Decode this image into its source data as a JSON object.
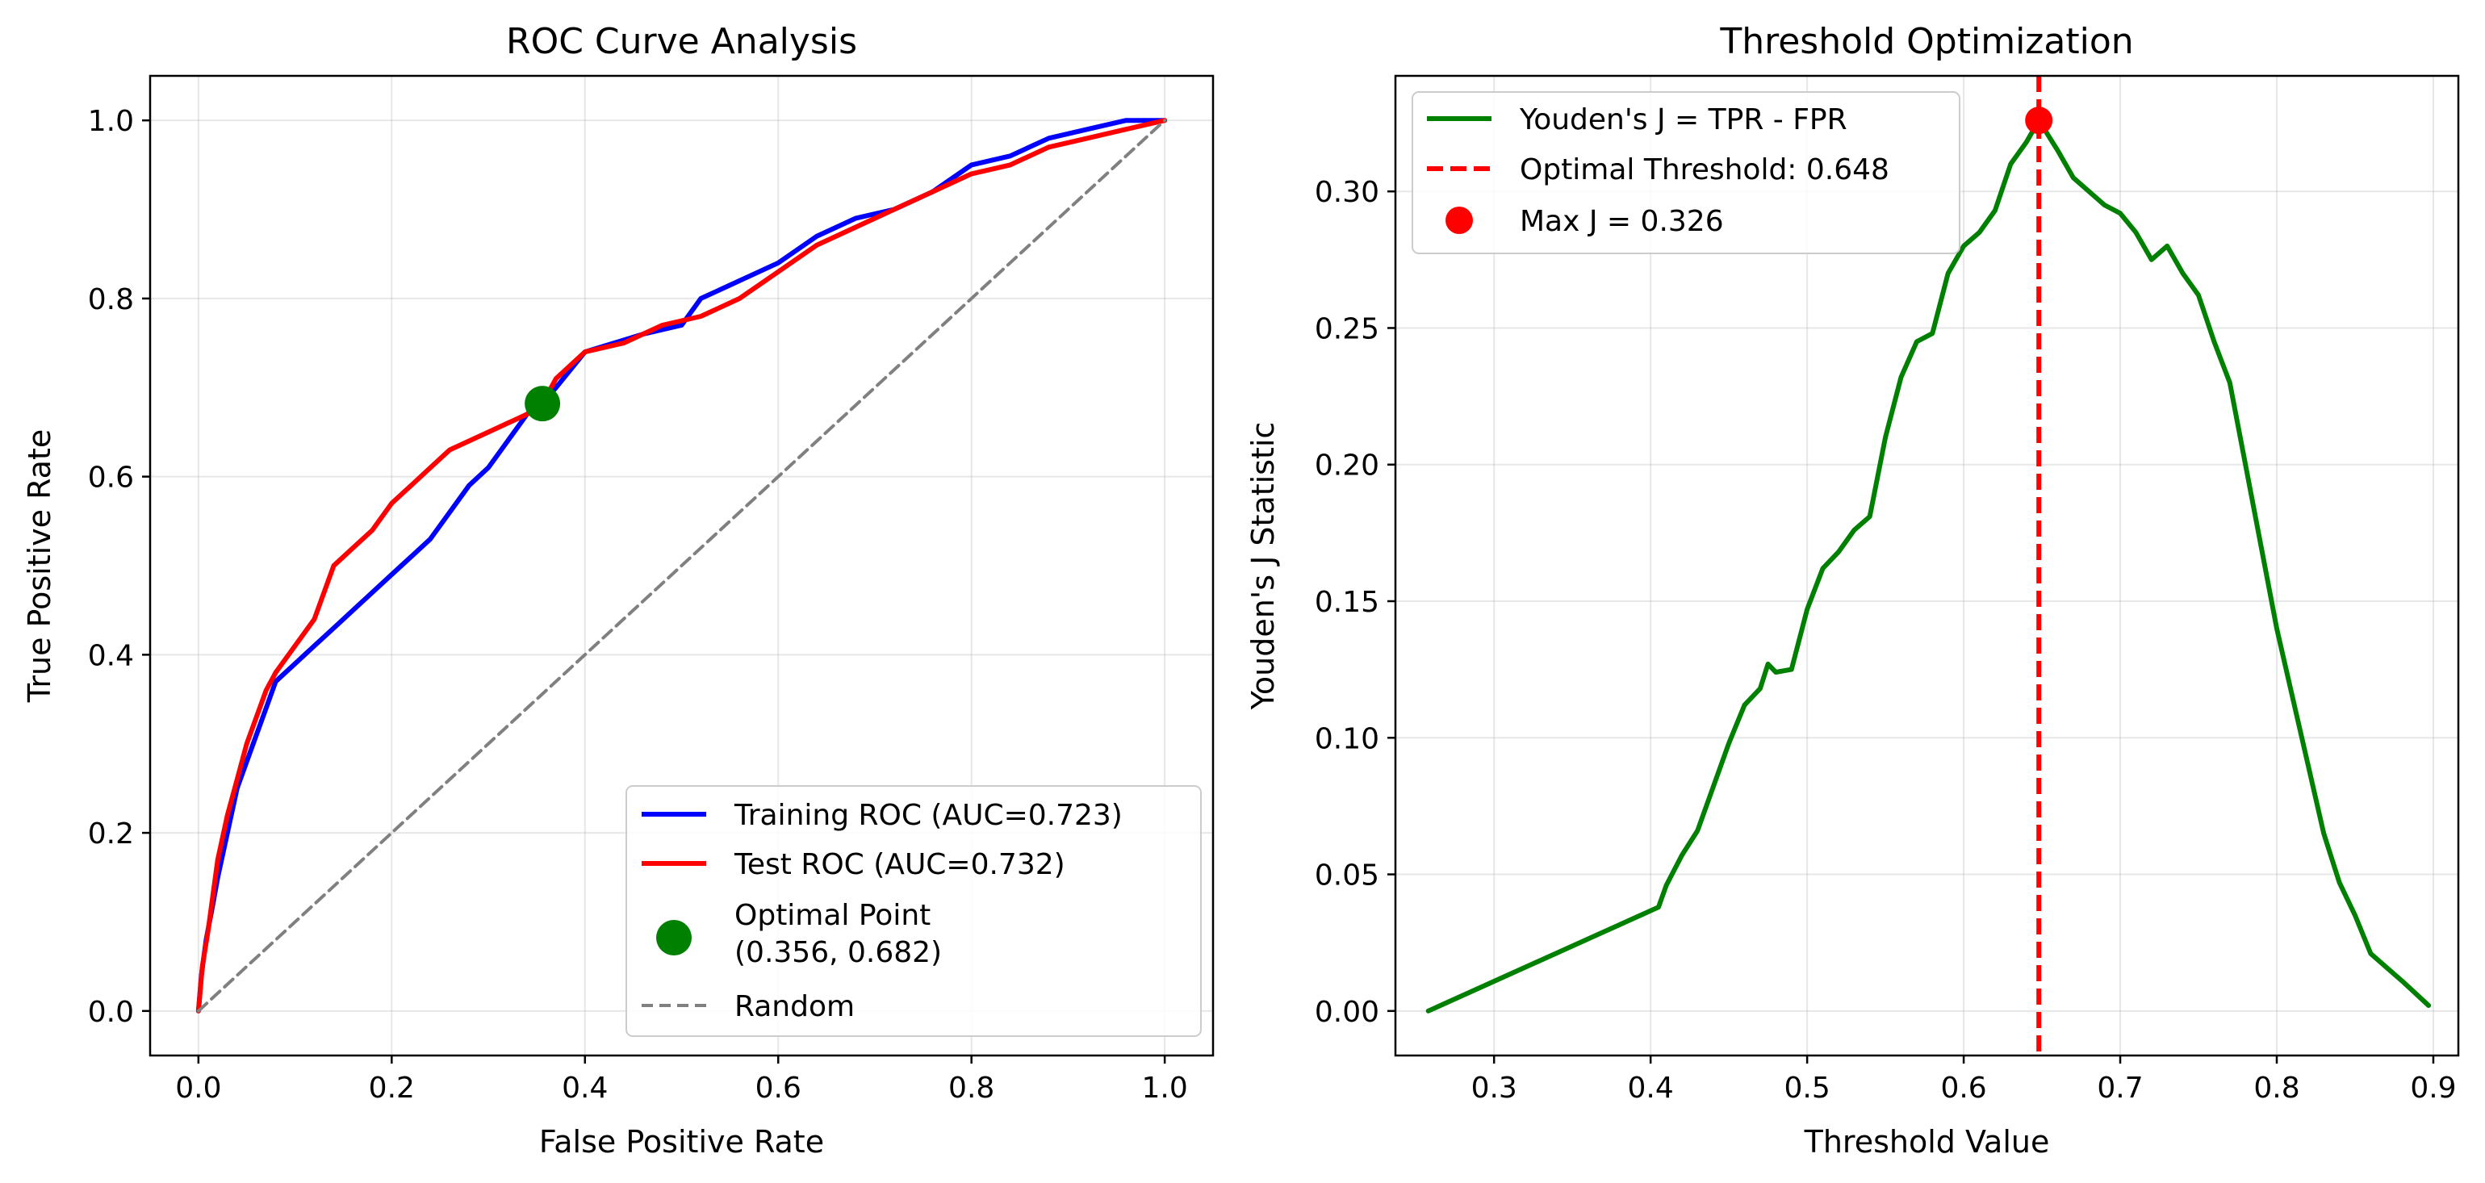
{
  "chart_data": [
    {
      "type": "line",
      "title": "ROC Curve Analysis",
      "xlabel": "False Positive Rate",
      "ylabel": "True Positive Rate",
      "xlim": [
        -0.05,
        1.05
      ],
      "ylim": [
        -0.05,
        1.05
      ],
      "xticks": [
        "0.0",
        "0.2",
        "0.4",
        "0.6",
        "0.8",
        "1.0"
      ],
      "yticks": [
        "0.0",
        "0.2",
        "0.4",
        "0.6",
        "0.8",
        "1.0"
      ],
      "grid": true,
      "legend_position": "lower-right",
      "series": [
        {
          "name": "Training ROC (AUC=0.723)",
          "color": "#0000ff",
          "x": [
            0.0,
            0.003,
            0.008,
            0.015,
            0.02,
            0.03,
            0.04,
            0.05,
            0.06,
            0.07,
            0.08,
            0.1,
            0.12,
            0.14,
            0.16,
            0.18,
            0.2,
            0.22,
            0.24,
            0.26,
            0.28,
            0.3,
            0.32,
            0.34,
            0.356,
            0.37,
            0.4,
            0.43,
            0.46,
            0.5,
            0.52,
            0.54,
            0.58,
            0.6,
            0.64,
            0.68,
            0.72,
            0.76,
            0.8,
            0.84,
            0.88,
            0.92,
            0.96,
            1.0
          ],
          "y": [
            0.0,
            0.04,
            0.08,
            0.12,
            0.15,
            0.2,
            0.25,
            0.28,
            0.31,
            0.34,
            0.37,
            0.39,
            0.41,
            0.43,
            0.45,
            0.47,
            0.49,
            0.51,
            0.53,
            0.56,
            0.59,
            0.61,
            0.64,
            0.67,
            0.682,
            0.7,
            0.74,
            0.75,
            0.76,
            0.77,
            0.8,
            0.81,
            0.83,
            0.84,
            0.87,
            0.89,
            0.9,
            0.92,
            0.95,
            0.96,
            0.98,
            0.99,
            1.0,
            1.0
          ]
        },
        {
          "name": "Test ROC (AUC=0.732)",
          "color": "#ff0000",
          "x": [
            0.0,
            0.004,
            0.01,
            0.015,
            0.02,
            0.03,
            0.04,
            0.05,
            0.06,
            0.07,
            0.08,
            0.1,
            0.12,
            0.14,
            0.16,
            0.18,
            0.2,
            0.22,
            0.24,
            0.26,
            0.28,
            0.3,
            0.32,
            0.34,
            0.356,
            0.37,
            0.4,
            0.44,
            0.48,
            0.52,
            0.56,
            0.6,
            0.64,
            0.68,
            0.72,
            0.76,
            0.8,
            0.84,
            0.88,
            0.92,
            0.96,
            1.0
          ],
          "y": [
            0.0,
            0.05,
            0.09,
            0.13,
            0.17,
            0.22,
            0.26,
            0.3,
            0.33,
            0.36,
            0.38,
            0.41,
            0.44,
            0.5,
            0.52,
            0.54,
            0.57,
            0.59,
            0.61,
            0.63,
            0.64,
            0.65,
            0.66,
            0.67,
            0.682,
            0.71,
            0.74,
            0.75,
            0.77,
            0.78,
            0.8,
            0.83,
            0.86,
            0.88,
            0.9,
            0.92,
            0.94,
            0.95,
            0.97,
            0.98,
            0.99,
            1.0
          ]
        },
        {
          "name": "Random",
          "color": "#808080",
          "dashed": true,
          "x": [
            0.0,
            1.0
          ],
          "y": [
            0.0,
            1.0
          ]
        }
      ],
      "points": [
        {
          "name": "Optimal Point\n(0.356, 0.682)",
          "legend_lines": [
            "Optimal Point",
            "(0.356, 0.682)"
          ],
          "color": "#008000",
          "x": 0.356,
          "y": 0.682
        }
      ]
    },
    {
      "type": "line",
      "title": "Threshold Optimization",
      "xlabel": "Threshold Value",
      "ylabel": "Youden's J Statistic",
      "xlim": [
        0.237,
        0.916
      ],
      "ylim": [
        -0.0163,
        0.3423
      ],
      "xticks": [
        "0.3",
        "0.4",
        "0.5",
        "0.6",
        "0.7",
        "0.8",
        "0.9"
      ],
      "yticks": [
        "0.00",
        "0.05",
        "0.10",
        "0.15",
        "0.20",
        "0.25",
        "0.30"
      ],
      "grid": true,
      "legend_position": "upper-left",
      "series": [
        {
          "name": "Youden's J = TPR - FPR",
          "color": "#008000",
          "x": [
            0.258,
            0.405,
            0.41,
            0.42,
            0.43,
            0.44,
            0.45,
            0.46,
            0.47,
            0.475,
            0.48,
            0.49,
            0.5,
            0.51,
            0.52,
            0.53,
            0.54,
            0.55,
            0.56,
            0.57,
            0.58,
            0.59,
            0.6,
            0.61,
            0.62,
            0.63,
            0.64,
            0.648,
            0.66,
            0.67,
            0.68,
            0.69,
            0.7,
            0.71,
            0.72,
            0.73,
            0.74,
            0.75,
            0.76,
            0.77,
            0.78,
            0.79,
            0.8,
            0.81,
            0.82,
            0.83,
            0.84,
            0.85,
            0.86,
            0.87,
            0.88,
            0.897
          ],
          "y": [
            0.0,
            0.038,
            0.046,
            0.057,
            0.066,
            0.082,
            0.098,
            0.112,
            0.118,
            0.127,
            0.124,
            0.125,
            0.147,
            0.162,
            0.168,
            0.176,
            0.181,
            0.21,
            0.232,
            0.245,
            0.248,
            0.27,
            0.28,
            0.285,
            0.293,
            0.31,
            0.318,
            0.326,
            0.315,
            0.305,
            0.3,
            0.295,
            0.292,
            0.285,
            0.275,
            0.28,
            0.27,
            0.262,
            0.245,
            0.23,
            0.2,
            0.17,
            0.14,
            0.115,
            0.09,
            0.065,
            0.047,
            0.035,
            0.021,
            0.016,
            0.011,
            0.002
          ]
        },
        {
          "name": "Optimal Threshold: 0.648",
          "color": "#ff0000",
          "dashed": true,
          "vline_x": 0.648
        }
      ],
      "points": [
        {
          "name": "Max J = 0.326",
          "color": "#ff0000",
          "x": 0.648,
          "y": 0.326
        }
      ]
    }
  ]
}
